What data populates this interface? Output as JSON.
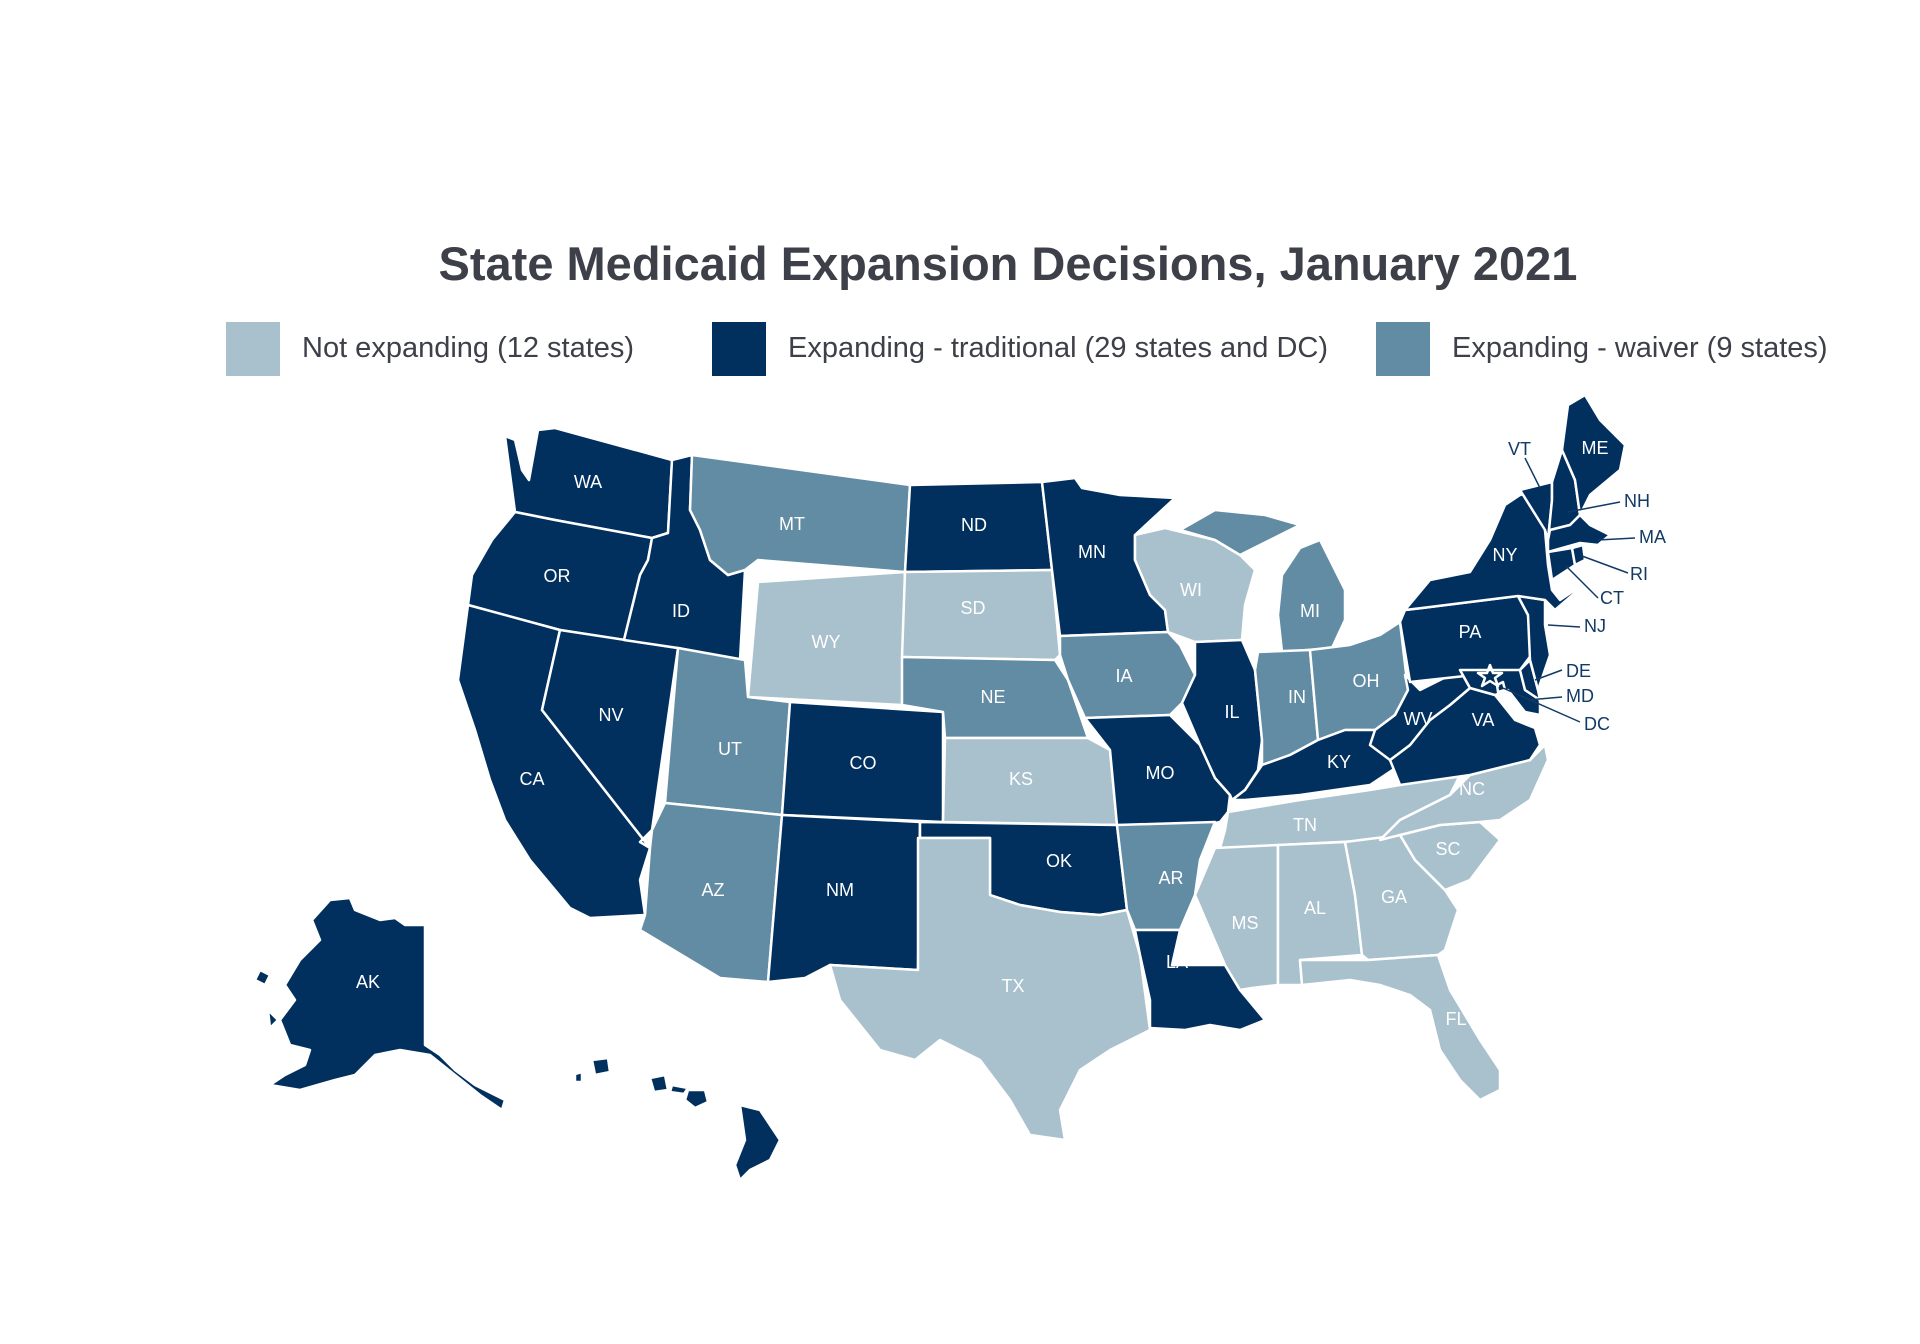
{
  "title": "State Medicaid Expansion Decisions, January 2021",
  "colors": {
    "not_expanding": "#a9c0cd",
    "expanding_traditional": "#02305e",
    "expanding_waiver": "#628ba4",
    "label_dark": "#123a66",
    "label_light": "#ffffff",
    "text": "#3e4049"
  },
  "legend": [
    {
      "key": "not_expanding",
      "label": "Not expanding (12 states)"
    },
    {
      "key": "expanding_traditional",
      "label": "Expanding - traditional (29 states and DC)"
    },
    {
      "key": "expanding_waiver",
      "label": "Expanding - waiver (9 states)"
    }
  ],
  "states": [
    {
      "abbr": "WA",
      "status": "expanding_traditional"
    },
    {
      "abbr": "OR",
      "status": "expanding_traditional"
    },
    {
      "abbr": "CA",
      "status": "expanding_traditional"
    },
    {
      "abbr": "NV",
      "status": "expanding_traditional"
    },
    {
      "abbr": "ID",
      "status": "expanding_traditional"
    },
    {
      "abbr": "MT",
      "status": "expanding_waiver"
    },
    {
      "abbr": "WY",
      "status": "not_expanding"
    },
    {
      "abbr": "UT",
      "status": "expanding_waiver"
    },
    {
      "abbr": "AZ",
      "status": "expanding_waiver"
    },
    {
      "abbr": "CO",
      "status": "expanding_traditional"
    },
    {
      "abbr": "NM",
      "status": "expanding_traditional"
    },
    {
      "abbr": "ND",
      "status": "expanding_traditional"
    },
    {
      "abbr": "SD",
      "status": "not_expanding"
    },
    {
      "abbr": "NE",
      "status": "expanding_waiver"
    },
    {
      "abbr": "KS",
      "status": "not_expanding"
    },
    {
      "abbr": "OK",
      "status": "expanding_traditional"
    },
    {
      "abbr": "TX",
      "status": "not_expanding"
    },
    {
      "abbr": "MN",
      "status": "expanding_traditional"
    },
    {
      "abbr": "IA",
      "status": "expanding_waiver"
    },
    {
      "abbr": "MO",
      "status": "expanding_traditional"
    },
    {
      "abbr": "AR",
      "status": "expanding_waiver"
    },
    {
      "abbr": "LA",
      "status": "expanding_traditional"
    },
    {
      "abbr": "WI",
      "status": "not_expanding"
    },
    {
      "abbr": "IL",
      "status": "expanding_traditional"
    },
    {
      "abbr": "MI",
      "status": "expanding_waiver"
    },
    {
      "abbr": "IN",
      "status": "expanding_waiver"
    },
    {
      "abbr": "OH",
      "status": "expanding_waiver"
    },
    {
      "abbr": "KY",
      "status": "expanding_traditional"
    },
    {
      "abbr": "TN",
      "status": "not_expanding"
    },
    {
      "abbr": "MS",
      "status": "not_expanding"
    },
    {
      "abbr": "AL",
      "status": "not_expanding"
    },
    {
      "abbr": "GA",
      "status": "not_expanding"
    },
    {
      "abbr": "FL",
      "status": "not_expanding"
    },
    {
      "abbr": "SC",
      "status": "not_expanding"
    },
    {
      "abbr": "NC",
      "status": "not_expanding"
    },
    {
      "abbr": "VA",
      "status": "expanding_traditional"
    },
    {
      "abbr": "WV",
      "status": "expanding_traditional"
    },
    {
      "abbr": "PA",
      "status": "expanding_traditional"
    },
    {
      "abbr": "NY",
      "status": "expanding_traditional"
    },
    {
      "abbr": "VT",
      "status": "expanding_traditional"
    },
    {
      "abbr": "NH",
      "status": "expanding_traditional"
    },
    {
      "abbr": "ME",
      "status": "expanding_traditional"
    },
    {
      "abbr": "MA",
      "status": "expanding_traditional"
    },
    {
      "abbr": "RI",
      "status": "expanding_traditional"
    },
    {
      "abbr": "CT",
      "status": "expanding_traditional"
    },
    {
      "abbr": "NJ",
      "status": "expanding_traditional"
    },
    {
      "abbr": "DE",
      "status": "expanding_traditional"
    },
    {
      "abbr": "MD",
      "status": "expanding_traditional"
    },
    {
      "abbr": "DC",
      "status": "expanding_traditional"
    },
    {
      "abbr": "AK",
      "status": "expanding_traditional"
    },
    {
      "abbr": "HI",
      "status": "expanding_traditional"
    }
  ]
}
